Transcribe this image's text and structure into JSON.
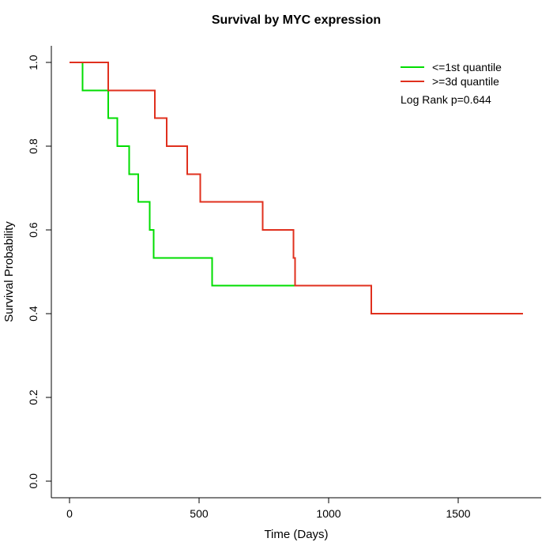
{
  "figure": {
    "background": "#ffffff"
  },
  "chart_data": {
    "type": "line",
    "subtype": "kaplan_meier_step",
    "title": "Survival by MYC expression",
    "xlabel": "Time (Days)",
    "ylabel": "Survival Probability",
    "xlim": [
      -70,
      1820
    ],
    "ylim": [
      -0.04,
      1.04
    ],
    "x_ticks": [
      0,
      500,
      1000,
      1500
    ],
    "y_ticks": [
      "0.0",
      "0.2",
      "0.4",
      "0.6",
      "0.8",
      "1.0"
    ],
    "grid": false,
    "legend_position": "top-right",
    "annotation": "Log Rank p=0.644",
    "series": [
      {
        "name": "<=1st quantile",
        "color": "#00dd00",
        "end_time": 1200,
        "points": [
          [
            0,
            1.0
          ],
          [
            50,
            0.933
          ],
          [
            150,
            0.867
          ],
          [
            185,
            0.8
          ],
          [
            230,
            0.733
          ],
          [
            265,
            0.667
          ],
          [
            310,
            0.6
          ],
          [
            325,
            0.533
          ],
          [
            550,
            0.467
          ],
          [
            1165,
            0.4
          ]
        ]
      },
      {
        "name": ">=3d quantile",
        "color": "#e0301e",
        "end_time": 1750,
        "points": [
          [
            0,
            1.0
          ],
          [
            150,
            0.933
          ],
          [
            330,
            0.867
          ],
          [
            375,
            0.8
          ],
          [
            455,
            0.733
          ],
          [
            505,
            0.667
          ],
          [
            745,
            0.6
          ],
          [
            865,
            0.533
          ],
          [
            870,
            0.467
          ],
          [
            1165,
            0.4
          ]
        ]
      }
    ]
  }
}
